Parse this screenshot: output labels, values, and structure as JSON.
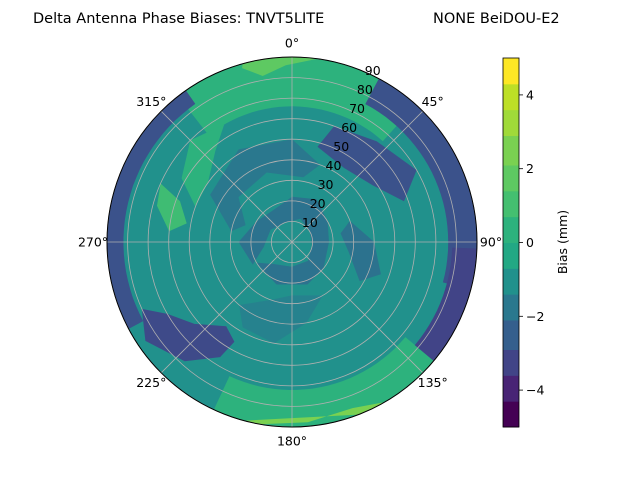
{
  "chart_data": {
    "type": "polar-contour",
    "title_left": "Delta Antenna Phase Biases: TNVT5LITE",
    "title_right": "NONE BeiDOU-E2",
    "angular_ticks": [
      {
        "deg": 0,
        "label": "0°"
      },
      {
        "deg": 45,
        "label": "45°"
      },
      {
        "deg": 90,
        "label": "90°"
      },
      {
        "deg": 135,
        "label": "135°"
      },
      {
        "deg": 180,
        "label": "180°"
      },
      {
        "deg": 225,
        "label": "225°"
      },
      {
        "deg": 270,
        "label": "270°"
      },
      {
        "deg": 315,
        "label": "315°"
      }
    ],
    "radial_ticks": [
      "10",
      "20",
      "30",
      "40",
      "50",
      "60",
      "70",
      "80",
      "90"
    ],
    "radial_range": [
      0,
      90
    ],
    "grid": true,
    "colorbar": {
      "label": "Bias (mm)",
      "range": [
        -5,
        5
      ],
      "ticks": [
        "−4",
        "−2",
        "0",
        "2",
        "4"
      ],
      "levels": [
        -5,
        -4.3,
        -3.6,
        -2.9,
        -2.1,
        -1.4,
        -0.7,
        0,
        0.7,
        1.4,
        2.1,
        2.9,
        3.6,
        4.3,
        5
      ],
      "colors": [
        "#440154",
        "#482475",
        "#414487",
        "#355f8d",
        "#2a788e",
        "#21918c",
        "#22a884",
        "#44bf70",
        "#7ad151",
        "#bddf26",
        "#fde725",
        "#fde725",
        "#fde725",
        "#fde725"
      ]
    },
    "regions": [
      {
        "name": "background",
        "value": 0.3,
        "color": "#21918c"
      },
      {
        "name": "top-band",
        "value": 2.0,
        "color": "#2db27d"
      },
      {
        "name": "top-highlight",
        "value": 3.0,
        "color": "#5ec962"
      },
      {
        "name": "upper-left-band",
        "value": 1.5,
        "color": "#2db27d"
      },
      {
        "name": "left-patch",
        "value": 2.2,
        "color": "#3fbc73"
      },
      {
        "name": "left-rim-low",
        "value": -2.0,
        "color": "#3b528b"
      },
      {
        "name": "upper-right-rim-low",
        "value": -2.5,
        "color": "#3b528b"
      },
      {
        "name": "ring-low-30-60",
        "value": -1.0,
        "color": "#2a788e"
      },
      {
        "name": "ring-low-inner",
        "value": -1.3,
        "color": "#2c728e"
      },
      {
        "name": "lower-left-low",
        "value": -2.8,
        "color": "#3e4a89"
      },
      {
        "name": "lower-mid-low",
        "value": -0.8,
        "color": "#26828e"
      },
      {
        "name": "bottom-band",
        "value": 2.0,
        "color": "#2db27d"
      },
      {
        "name": "bottom-highlight",
        "value": 3.4,
        "color": "#7ad151"
      },
      {
        "name": "right-rim-low",
        "value": -2.3,
        "color": "#414487"
      },
      {
        "name": "right-mid-low",
        "value": -1.2,
        "color": "#2c728e"
      }
    ]
  }
}
